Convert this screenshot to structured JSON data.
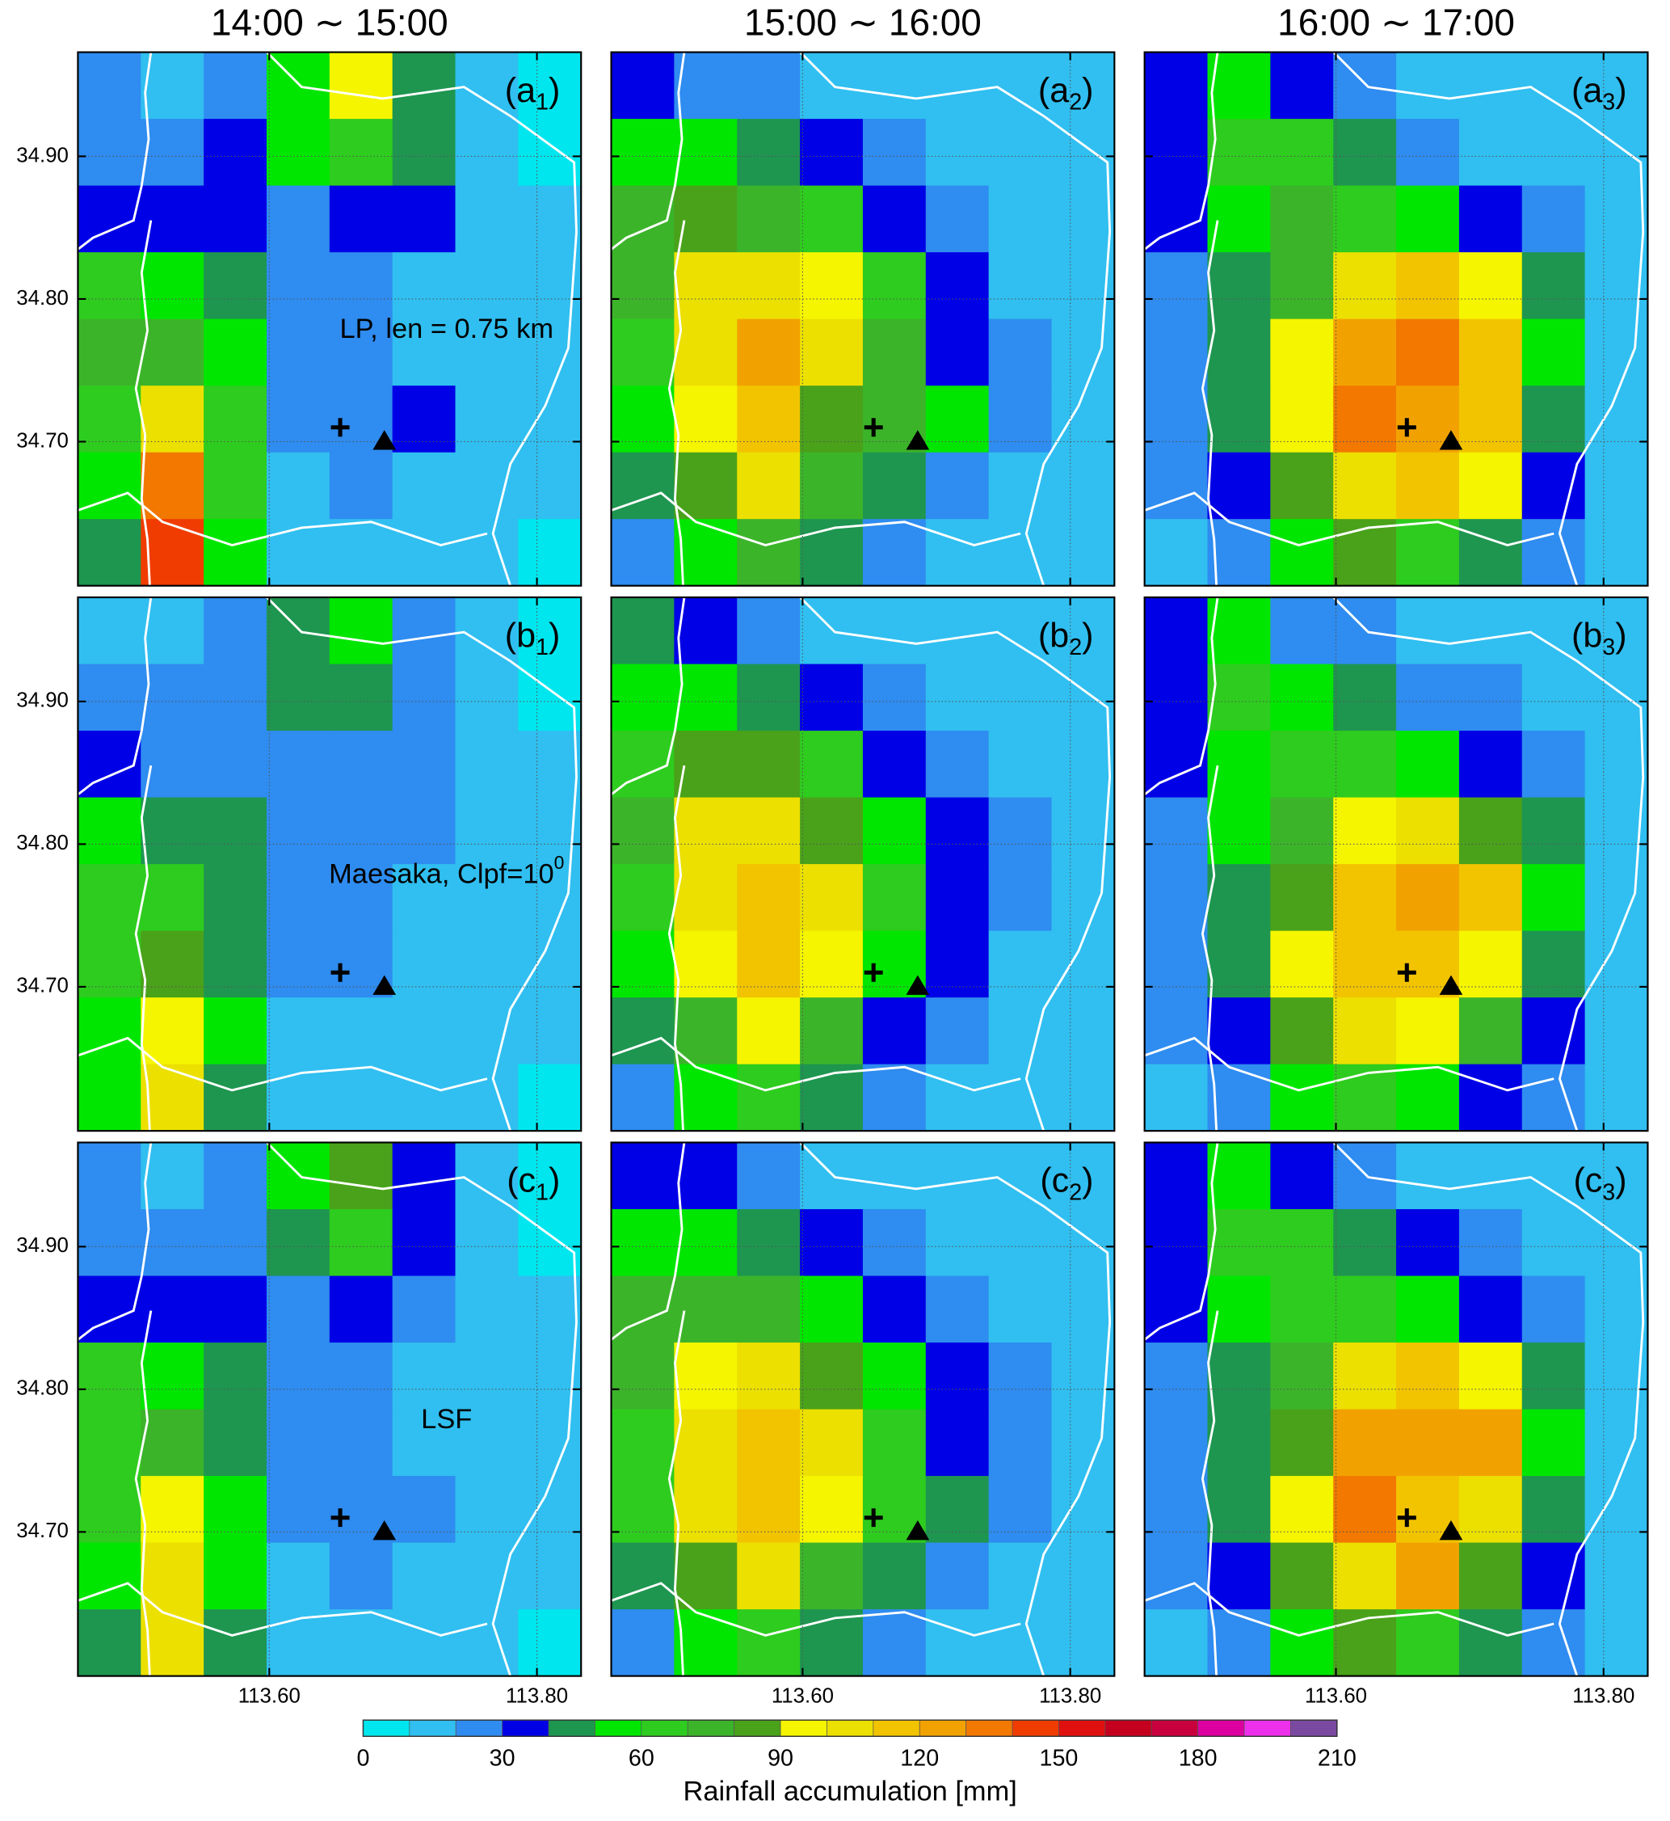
{
  "chart_data": [
    {
      "type": "heatmap",
      "title": "14:00 ∼ 15:00",
      "label_main": "(a",
      "label_sub": "1",
      "label_end": ")",
      "annotation": [
        "LP, len = 0.75 km"
      ],
      "show_xticklabels": false,
      "show_yticklabels": true,
      "xlim": [
        113.457,
        113.833
      ],
      "ylim": [
        34.599,
        34.973
      ],
      "xticks": [
        {
          "value": 113.6,
          "label": "113.60"
        },
        {
          "value": 113.8,
          "label": "113.80"
        }
      ],
      "yticks": [
        {
          "value": 34.7,
          "label": "34.70"
        },
        {
          "value": 34.8,
          "label": "34.80"
        },
        {
          "value": 34.9,
          "label": "34.90"
        }
      ],
      "z": [
        [
          20,
          15,
          20,
          50,
          90,
          40,
          10,
          5
        ],
        [
          25,
          20,
          30,
          50,
          65,
          40,
          10,
          5
        ],
        [
          35,
          30,
          35,
          25,
          30,
          35,
          15,
          10
        ],
        [
          60,
          55,
          45,
          20,
          20,
          15,
          15,
          10
        ],
        [
          70,
          75,
          55,
          20,
          20,
          15,
          15,
          10
        ],
        [
          65,
          100,
          60,
          20,
          25,
          30,
          15,
          10
        ],
        [
          55,
          130,
          60,
          15,
          20,
          15,
          10,
          10
        ],
        [
          40,
          140,
          50,
          10,
          15,
          10,
          10,
          5
        ]
      ]
    },
    {
      "type": "heatmap",
      "title": "15:00 ∼ 16:00",
      "label_main": "(a",
      "label_sub": "2",
      "label_end": ")",
      "show_xticklabels": false,
      "show_yticklabels": false,
      "xlim": [
        113.457,
        113.833
      ],
      "ylim": [
        34.599,
        34.973
      ],
      "xticks": [
        {
          "value": 113.6,
          "label": "113.60"
        },
        {
          "value": 113.8,
          "label": "113.80"
        }
      ],
      "yticks": [
        {
          "value": 34.7,
          "label": "34.70"
        },
        {
          "value": 34.8,
          "label": "34.80"
        },
        {
          "value": 34.9,
          "label": "34.90"
        }
      ],
      "z": [
        [
          35,
          25,
          20,
          15,
          10,
          10,
          10,
          10
        ],
        [
          55,
          50,
          40,
          30,
          20,
          15,
          10,
          10
        ],
        [
          70,
          80,
          75,
          60,
          35,
          20,
          15,
          10
        ],
        [
          70,
          100,
          100,
          90,
          60,
          30,
          15,
          10
        ],
        [
          65,
          105,
          120,
          100,
          70,
          35,
          20,
          10
        ],
        [
          55,
          95,
          110,
          80,
          70,
          50,
          20,
          10
        ],
        [
          40,
          80,
          100,
          70,
          40,
          25,
          15,
          10
        ],
        [
          25,
          55,
          70,
          45,
          25,
          15,
          10,
          10
        ]
      ]
    },
    {
      "type": "heatmap",
      "title": "16:00 ∼ 17:00",
      "label_main": "(a",
      "label_sub": "3",
      "label_end": ")",
      "show_xticklabels": false,
      "show_yticklabels": false,
      "xlim": [
        113.457,
        113.833
      ],
      "ylim": [
        34.599,
        34.973
      ],
      "xticks": [
        {
          "value": 113.6,
          "label": "113.60"
        },
        {
          "value": 113.8,
          "label": "113.80"
        }
      ],
      "yticks": [
        {
          "value": 34.7,
          "label": "34.70"
        },
        {
          "value": 34.8,
          "label": "34.80"
        },
        {
          "value": 34.9,
          "label": "34.90"
        }
      ],
      "z": [
        [
          30,
          50,
          30,
          20,
          15,
          15,
          10,
          10
        ],
        [
          35,
          60,
          60,
          40,
          25,
          15,
          15,
          10
        ],
        [
          30,
          50,
          70,
          65,
          50,
          30,
          20,
          10
        ],
        [
          25,
          45,
          75,
          105,
          110,
          90,
          40,
          15
        ],
        [
          20,
          40,
          90,
          120,
          130,
          115,
          50,
          15
        ],
        [
          20,
          40,
          95,
          130,
          125,
          110,
          45,
          15
        ],
        [
          20,
          35,
          85,
          105,
          115,
          95,
          35,
          15
        ],
        [
          15,
          25,
          50,
          80,
          60,
          40,
          20,
          10
        ]
      ]
    },
    {
      "type": "heatmap",
      "label_main": "(b",
      "label_sub": "1",
      "label_end": ")",
      "annotation": [
        "Maesaka, Clpf=10",
        "0"
      ],
      "show_xticklabels": false,
      "show_yticklabels": true,
      "xlim": [
        113.457,
        113.833
      ],
      "ylim": [
        34.599,
        34.973
      ],
      "xticks": [
        {
          "value": 113.6,
          "label": "113.60"
        },
        {
          "value": 113.8,
          "label": "113.80"
        }
      ],
      "yticks": [
        {
          "value": 34.7,
          "label": "34.70"
        },
        {
          "value": 34.8,
          "label": "34.80"
        },
        {
          "value": 34.9,
          "label": "34.90"
        }
      ],
      "z": [
        [
          15,
          15,
          20,
          45,
          55,
          25,
          10,
          5
        ],
        [
          20,
          20,
          25,
          40,
          45,
          20,
          10,
          5
        ],
        [
          30,
          25,
          25,
          20,
          20,
          20,
          15,
          10
        ],
        [
          50,
          45,
          40,
          20,
          20,
          20,
          15,
          10
        ],
        [
          60,
          65,
          40,
          20,
          20,
          15,
          15,
          10
        ],
        [
          60,
          80,
          45,
          20,
          20,
          15,
          15,
          10
        ],
        [
          55,
          95,
          50,
          15,
          15,
          15,
          10,
          10
        ],
        [
          50,
          100,
          45,
          10,
          15,
          10,
          10,
          5
        ]
      ]
    },
    {
      "type": "heatmap",
      "label_main": "(b",
      "label_sub": "2",
      "label_end": ")",
      "show_xticklabels": false,
      "show_yticklabels": false,
      "xlim": [
        113.457,
        113.833
      ],
      "ylim": [
        34.599,
        34.973
      ],
      "xticks": [
        {
          "value": 113.6,
          "label": "113.60"
        },
        {
          "value": 113.8,
          "label": "113.80"
        }
      ],
      "yticks": [
        {
          "value": 34.7,
          "label": "34.70"
        },
        {
          "value": 34.8,
          "label": "34.80"
        },
        {
          "value": 34.9,
          "label": "34.90"
        }
      ],
      "z": [
        [
          40,
          30,
          20,
          15,
          10,
          10,
          10,
          10
        ],
        [
          55,
          50,
          45,
          30,
          20,
          15,
          10,
          10
        ],
        [
          65,
          80,
          80,
          60,
          35,
          20,
          15,
          10
        ],
        [
          70,
          100,
          100,
          85,
          55,
          30,
          20,
          10
        ],
        [
          65,
          105,
          115,
          100,
          65,
          35,
          20,
          10
        ],
        [
          55,
          95,
          115,
          95,
          55,
          30,
          15,
          10
        ],
        [
          40,
          75,
          90,
          70,
          35,
          20,
          15,
          10
        ],
        [
          25,
          50,
          60,
          40,
          20,
          15,
          10,
          10
        ]
      ]
    },
    {
      "type": "heatmap",
      "label_main": "(b",
      "label_sub": "3",
      "label_end": ")",
      "show_xticklabels": false,
      "show_yticklabels": false,
      "xlim": [
        113.457,
        113.833
      ],
      "ylim": [
        34.599,
        34.973
      ],
      "xticks": [
        {
          "value": 113.6,
          "label": "113.60"
        },
        {
          "value": 113.8,
          "label": "113.80"
        }
      ],
      "yticks": [
        {
          "value": 34.7,
          "label": "34.70"
        },
        {
          "value": 34.8,
          "label": "34.80"
        },
        {
          "value": 34.9,
          "label": "34.90"
        }
      ],
      "z": [
        [
          30,
          50,
          25,
          20,
          15,
          15,
          10,
          10
        ],
        [
          35,
          60,
          55,
          40,
          25,
          20,
          15,
          10
        ],
        [
          30,
          55,
          65,
          60,
          50,
          35,
          20,
          10
        ],
        [
          25,
          50,
          75,
          95,
          100,
          80,
          40,
          15
        ],
        [
          25,
          45,
          85,
          115,
          125,
          110,
          50,
          15
        ],
        [
          20,
          40,
          90,
          115,
          115,
          95,
          45,
          15
        ],
        [
          20,
          35,
          80,
          100,
          95,
          70,
          35,
          15
        ],
        [
          15,
          25,
          50,
          65,
          50,
          35,
          20,
          10
        ]
      ]
    },
    {
      "type": "heatmap",
      "label_main": "(c",
      "label_sub": "1",
      "label_end": ")",
      "annotation": [
        "LSF"
      ],
      "show_xticklabels": true,
      "show_yticklabels": true,
      "xlim": [
        113.457,
        113.833
      ],
      "ylim": [
        34.599,
        34.973
      ],
      "xticks": [
        {
          "value": 113.6,
          "label": "113.60"
        },
        {
          "value": 113.8,
          "label": "113.80"
        }
      ],
      "yticks": [
        {
          "value": 34.7,
          "label": "34.70"
        },
        {
          "value": 34.8,
          "label": "34.80"
        },
        {
          "value": 34.9,
          "label": "34.90"
        }
      ],
      "z": [
        [
          20,
          15,
          20,
          50,
          80,
          35,
          10,
          5
        ],
        [
          25,
          20,
          25,
          45,
          60,
          35,
          10,
          5
        ],
        [
          30,
          30,
          35,
          25,
          30,
          25,
          15,
          10
        ],
        [
          60,
          55,
          40,
          20,
          20,
          15,
          10,
          10
        ],
        [
          65,
          70,
          45,
          20,
          20,
          15,
          10,
          10
        ],
        [
          60,
          90,
          50,
          20,
          20,
          20,
          15,
          10
        ],
        [
          50,
          100,
          50,
          15,
          20,
          15,
          10,
          10
        ],
        [
          45,
          100,
          40,
          10,
          15,
          10,
          10,
          5
        ]
      ]
    },
    {
      "type": "heatmap",
      "label_main": "(c",
      "label_sub": "2",
      "label_end": ")",
      "show_xticklabels": true,
      "show_yticklabels": false,
      "xlim": [
        113.457,
        113.833
      ],
      "ylim": [
        34.599,
        34.973
      ],
      "xticks": [
        {
          "value": 113.6,
          "label": "113.60"
        },
        {
          "value": 113.8,
          "label": "113.80"
        }
      ],
      "yticks": [
        {
          "value": 34.7,
          "label": "34.70"
        },
        {
          "value": 34.8,
          "label": "34.80"
        },
        {
          "value": 34.9,
          "label": "34.90"
        }
      ],
      "z": [
        [
          35,
          35,
          25,
          15,
          10,
          10,
          10,
          10
        ],
        [
          55,
          55,
          45,
          30,
          20,
          15,
          10,
          10
        ],
        [
          70,
          75,
          75,
          55,
          35,
          20,
          15,
          10
        ],
        [
          70,
          95,
          100,
          85,
          55,
          30,
          20,
          10
        ],
        [
          65,
          100,
          115,
          100,
          60,
          35,
          20,
          10
        ],
        [
          60,
          100,
          110,
          95,
          60,
          40,
          20,
          10
        ],
        [
          45,
          80,
          100,
          75,
          40,
          25,
          15,
          10
        ],
        [
          25,
          50,
          65,
          45,
          20,
          15,
          10,
          10
        ]
      ]
    },
    {
      "type": "heatmap",
      "label_main": "(c",
      "label_sub": "3",
      "label_end": ")",
      "show_xticklabels": true,
      "show_yticklabels": false,
      "xlim": [
        113.457,
        113.833
      ],
      "ylim": [
        34.599,
        34.973
      ],
      "xticks": [
        {
          "value": 113.6,
          "label": "113.60"
        },
        {
          "value": 113.8,
          "label": "113.80"
        }
      ],
      "yticks": [
        {
          "value": 34.7,
          "label": "34.70"
        },
        {
          "value": 34.8,
          "label": "34.80"
        },
        {
          "value": 34.9,
          "label": "34.90"
        }
      ],
      "z": [
        [
          35,
          50,
          35,
          20,
          15,
          15,
          10,
          10
        ],
        [
          35,
          60,
          60,
          45,
          30,
          20,
          15,
          10
        ],
        [
          30,
          50,
          65,
          65,
          55,
          35,
          20,
          10
        ],
        [
          25,
          45,
          70,
          100,
          110,
          90,
          40,
          15
        ],
        [
          20,
          40,
          85,
          120,
          125,
          120,
          50,
          15
        ],
        [
          20,
          40,
          95,
          130,
          115,
          100,
          45,
          15
        ],
        [
          20,
          35,
          85,
          105,
          120,
          85,
          35,
          15
        ],
        [
          15,
          25,
          55,
          80,
          65,
          40,
          20,
          10
        ]
      ]
    }
  ],
  "sites": {
    "cross": [
      113.653,
      34.71
    ],
    "triangle": [
      113.686,
      34.7
    ]
  },
  "colorbar": {
    "label": "Rainfall accumulation [mm]",
    "levels": [
      0,
      10,
      20,
      30,
      40,
      50,
      60,
      70,
      80,
      90,
      100,
      110,
      120,
      130,
      140,
      150,
      160,
      170,
      180,
      190,
      200,
      210
    ],
    "colors": [
      "#00e6ee",
      "#30bff0",
      "#2f8cf0",
      "#0000e6",
      "#1e9650",
      "#00e600",
      "#2ecc1e",
      "#3cb42a",
      "#4aa21a",
      "#f5f500",
      "#ece000",
      "#f2c400",
      "#f2a200",
      "#f27800",
      "#f03c00",
      "#e01010",
      "#c4001e",
      "#c8003c",
      "#dc00a0",
      "#ec30ec",
      "#7a4aa0"
    ],
    "ticks": [
      0,
      30,
      60,
      90,
      120,
      150,
      180,
      210
    ]
  }
}
